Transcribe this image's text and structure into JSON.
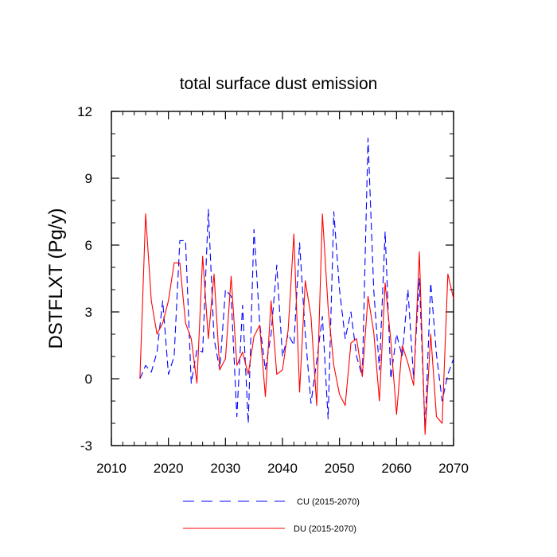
{
  "chart_data": {
    "type": "line",
    "title": "total surface dust emission",
    "xlabel": "",
    "ylabel": "DSTFLXT  (Pg/y)",
    "xlim": [
      2010,
      2070
    ],
    "ylim": [
      -3,
      12
    ],
    "x_ticks": [
      "2010",
      "2020",
      "2030",
      "2040",
      "2050",
      "2060",
      "2070"
    ],
    "y_ticks": [
      "-3",
      "0",
      "3",
      "6",
      "9",
      "12"
    ],
    "x": [
      2015,
      2016,
      2017,
      2018,
      2019,
      2020,
      2021,
      2022,
      2023,
      2024,
      2025,
      2026,
      2027,
      2028,
      2029,
      2030,
      2031,
      2032,
      2033,
      2034,
      2035,
      2036,
      2037,
      2038,
      2039,
      2040,
      2041,
      2042,
      2043,
      2044,
      2045,
      2046,
      2047,
      2048,
      2049,
      2050,
      2051,
      2052,
      2053,
      2054,
      2055,
      2056,
      2057,
      2058,
      2059,
      2060,
      2061,
      2062,
      2063,
      2064,
      2065,
      2066,
      2067,
      2068,
      2069,
      2070
    ],
    "series": [
      {
        "name": "CU (2015-2070)",
        "color": "#0000ff",
        "dash": "dashed",
        "values": [
          0.0,
          0.6,
          0.3,
          1.2,
          3.5,
          0.2,
          1.0,
          6.2,
          6.2,
          -0.2,
          1.3,
          1.2,
          7.6,
          1.8,
          0.4,
          4.0,
          3.7,
          -1.7,
          3.3,
          -2.0,
          6.7,
          2.5,
          0.4,
          2.0,
          5.1,
          1.0,
          2.0,
          1.5,
          6.1,
          2.0,
          -1.1,
          0.8,
          2.8,
          -1.8,
          7.5,
          4.0,
          1.8,
          3.0,
          1.0,
          0.1,
          10.8,
          4.0,
          0.4,
          6.6,
          0.0,
          2.0,
          1.0,
          4.0,
          0.0,
          4.5,
          -2.3,
          4.3,
          1.1,
          -1.0,
          0.2,
          0.9
        ]
      },
      {
        "name": "DU (2015-2070)",
        "color": "#ff0000",
        "dash": "solid",
        "values": [
          0.0,
          7.4,
          3.5,
          2.0,
          2.5,
          3.5,
          5.2,
          5.2,
          2.5,
          1.8,
          -0.2,
          5.5,
          1.8,
          4.7,
          0.4,
          0.9,
          4.6,
          0.6,
          1.2,
          0.2,
          1.9,
          2.4,
          -0.8,
          3.5,
          0.2,
          0.4,
          2.2,
          6.5,
          -0.6,
          4.4,
          2.8,
          -1.2,
          7.4,
          3.2,
          0.6,
          -0.7,
          -1.2,
          1.6,
          1.8,
          0.1,
          3.7,
          2.1,
          -1.0,
          4.3,
          1.7,
          -1.6,
          1.5,
          0.7,
          -0.3,
          5.7,
          -2.5,
          2.0,
          -1.7,
          -2.0,
          4.7,
          3.6
        ]
      }
    ],
    "legend_position": "bottom-center"
  }
}
